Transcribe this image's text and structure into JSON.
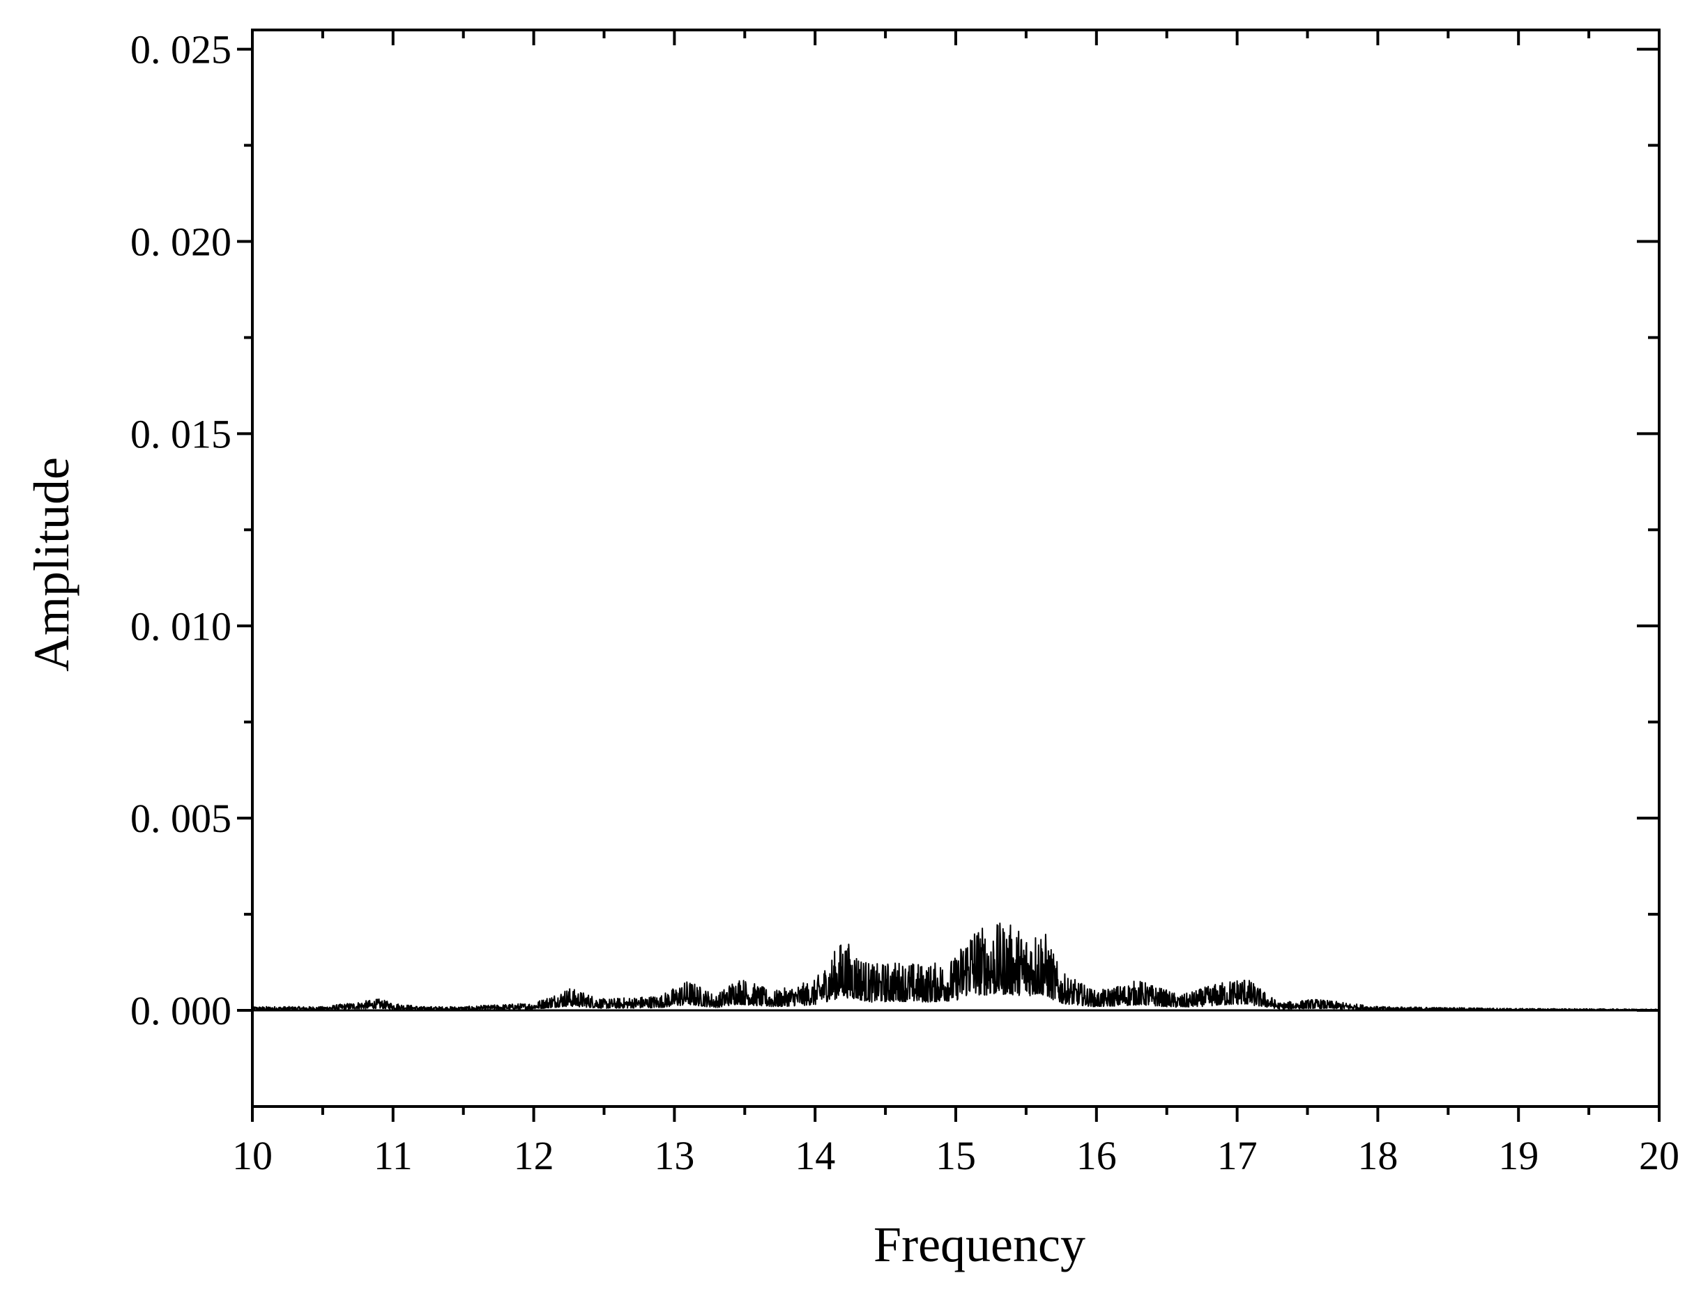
{
  "chart_data": {
    "type": "line",
    "title": "",
    "xlabel": "Frequency",
    "ylabel": "Amplitude",
    "xlim": [
      10,
      20
    ],
    "ylim": [
      -0.0025,
      0.0255
    ],
    "x_ticks": [
      10,
      11,
      12,
      13,
      14,
      15,
      16,
      17,
      18,
      19,
      20
    ],
    "x_tick_labels": [
      "10",
      "11",
      "12",
      "13",
      "14",
      "15",
      "16",
      "17",
      "18",
      "19",
      "20"
    ],
    "y_ticks": [
      0.0,
      0.005,
      0.01,
      0.015,
      0.02,
      0.025
    ],
    "y_tick_labels": [
      "0. 000",
      "0. 005",
      "0. 010",
      "0. 015",
      "0. 020",
      "0. 025"
    ],
    "grid": false,
    "legend": "none",
    "line_color": "#000000",
    "series": [
      {
        "x": [
          10.0,
          10.5,
          10.9,
          11.0,
          11.2,
          11.5,
          12.0,
          12.25,
          12.5,
          12.9,
          13.1,
          13.3,
          13.45,
          13.7,
          14.0,
          14.2,
          14.4,
          14.6,
          14.8,
          15.0,
          15.1,
          15.2,
          15.35,
          15.5,
          15.62,
          15.75,
          16.0,
          16.3,
          16.6,
          16.85,
          17.05,
          17.3,
          17.55,
          18.0,
          19.0,
          20.0
        ],
        "y": [
          0.0001,
          0.0001,
          0.0003,
          0.0002,
          0.0001,
          0.0001,
          0.0002,
          0.0006,
          0.0003,
          0.0004,
          0.0008,
          0.0004,
          0.0009,
          0.0005,
          0.0008,
          0.0019,
          0.0012,
          0.0013,
          0.0012,
          0.0014,
          0.0023,
          0.0022,
          0.0023,
          0.0021,
          0.0022,
          0.001,
          0.0005,
          0.0008,
          0.0004,
          0.0007,
          0.0009,
          0.0002,
          0.0003,
          0.0001,
          5e-05,
          3e-05
        ]
      }
    ]
  }
}
